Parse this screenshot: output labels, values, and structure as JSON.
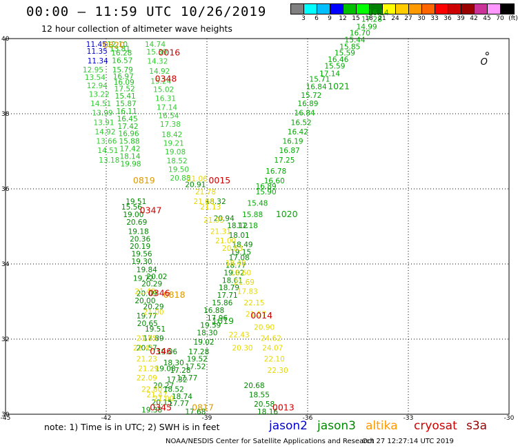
{
  "header": {
    "title": "00:00 – 11:59 UTC 10/26/2019",
    "subtitle": "12 hour collection of altimeter wave heights"
  },
  "colorbar": {
    "colors": [
      "#808080",
      "#00ffff",
      "#00bfff",
      "#0000ff",
      "#00c000",
      "#00ff00",
      "#008000",
      "#ffff00",
      "#ffcc00",
      "#ff9900",
      "#ff6600",
      "#ff0000",
      "#cc0000",
      "#990000",
      "#cc3399",
      "#ff99ff",
      "#000000"
    ],
    "labels": [
      "3",
      "6",
      "9",
      "12",
      "15",
      "18",
      "21",
      "24",
      "27",
      "30",
      "33",
      "36",
      "39",
      "42",
      "45",
      "70",
      "(ft)"
    ]
  },
  "map": {
    "lon_ticks": [
      "-45",
      "-42",
      "-39",
      "-36",
      "-33",
      "-30"
    ],
    "lat_ticks": [
      "30",
      "32",
      "34",
      "36",
      "38",
      "40"
    ],
    "land_label": "O",
    "tracks": [
      {
        "color": "#1fbf1f",
        "points": [
          [
            -41.98,
            39.78,
            "12.10"
          ],
          [
            -41.9,
            39.66,
            "13.81"
          ],
          [
            -41.85,
            39.55,
            "16.28"
          ],
          [
            -41.83,
            39.35,
            "16.57"
          ],
          [
            -41.82,
            39.1,
            "15.79"
          ],
          [
            -41.8,
            38.93,
            "16.97"
          ],
          [
            -41.78,
            38.77,
            "16.09"
          ],
          [
            -41.76,
            38.6,
            "17.52"
          ],
          [
            -41.74,
            38.4,
            "15.41"
          ],
          [
            -41.72,
            38.2,
            "15.87"
          ],
          [
            -41.7,
            38.0,
            "16.11"
          ],
          [
            -41.68,
            37.8,
            "16.45"
          ],
          [
            -41.66,
            37.6,
            "17.42"
          ],
          [
            -41.64,
            37.4,
            "16.96"
          ],
          [
            -41.62,
            37.2,
            "15.88"
          ],
          [
            -41.6,
            37.0,
            "17.42"
          ],
          [
            -41.6,
            36.8,
            "18.14"
          ],
          [
            -41.58,
            36.6,
            "19.98"
          ]
        ]
      },
      {
        "color": "#0000cc",
        "points": [
          [
            -42.6,
            39.78,
            "11.45"
          ],
          [
            -42.58,
            39.6,
            "11.35"
          ],
          [
            -42.56,
            39.34,
            "11.34"
          ]
        ]
      },
      {
        "color": "#33cc33",
        "points": [
          [
            -42.7,
            39.1,
            "12.95"
          ],
          [
            -42.64,
            38.9,
            "13.54"
          ],
          [
            -42.58,
            38.68,
            "12.94"
          ],
          [
            -42.52,
            38.45,
            "13.22"
          ],
          [
            -42.47,
            38.2,
            "14.51"
          ],
          [
            -42.42,
            37.95,
            "13.99"
          ],
          [
            -42.38,
            37.7,
            "13.91"
          ],
          [
            -42.34,
            37.45,
            "14.92"
          ],
          [
            -42.3,
            37.2,
            "13.66"
          ],
          [
            -42.26,
            36.95,
            "14.51"
          ],
          [
            -42.22,
            36.7,
            "13.18"
          ]
        ]
      },
      {
        "color": "#33cc33",
        "points": [
          [
            -40.85,
            39.78,
            "14.74"
          ],
          [
            -40.8,
            39.58,
            "15.39"
          ],
          [
            -40.78,
            39.33,
            "14.32"
          ],
          [
            -40.72,
            39.06,
            "14.92"
          ],
          [
            -40.68,
            38.8,
            "15.24"
          ],
          [
            -40.6,
            38.58,
            "15.02"
          ],
          [
            -40.54,
            38.34,
            "16.31"
          ],
          [
            -40.5,
            38.1,
            "17.14"
          ],
          [
            -40.45,
            37.88,
            "16.54"
          ],
          [
            -40.4,
            37.65,
            "17.38"
          ],
          [
            -40.35,
            37.38,
            "18.42"
          ],
          [
            -40.3,
            37.15,
            "19.21"
          ],
          [
            -40.25,
            36.92,
            "19.08"
          ],
          [
            -40.2,
            36.68,
            "18.52"
          ],
          [
            -40.15,
            36.45,
            "19.50"
          ],
          [
            -40.1,
            36.22,
            "20.88"
          ]
        ]
      },
      {
        "color": "#008800",
        "points": [
          [
            -39.65,
            36.05,
            "20.91"
          ],
          [
            -41.42,
            35.6,
            "19.51"
          ],
          [
            -41.55,
            35.45,
            "15.56"
          ],
          [
            -41.5,
            35.25,
            "19.00"
          ],
          [
            -41.4,
            35.05,
            "20.69"
          ],
          [
            -41.35,
            34.8,
            "19.18"
          ],
          [
            -41.3,
            34.6,
            "20.36"
          ],
          [
            -41.3,
            34.4,
            "20.19"
          ],
          [
            -41.25,
            34.2,
            "19.56"
          ],
          [
            -41.25,
            34.0,
            "19.30"
          ],
          [
            -41.1,
            33.78,
            "19.84"
          ],
          [
            -41.2,
            33.55,
            "19.72"
          ],
          [
            -40.95,
            33.4,
            "20.29"
          ],
          [
            -40.8,
            33.6,
            "20.02"
          ],
          [
            -41.1,
            33.15,
            "20.09"
          ],
          [
            -41.15,
            32.95,
            "20.00"
          ],
          [
            -40.9,
            32.8,
            "20.29"
          ],
          [
            -41.1,
            32.55,
            "19.77"
          ],
          [
            -41.08,
            32.35,
            "20.65"
          ],
          [
            -40.85,
            32.2,
            "19.51"
          ],
          [
            -40.9,
            31.95,
            "17.89"
          ],
          [
            -41.1,
            31.7,
            "20.57"
          ],
          [
            -40.5,
            31.6,
            "19.06"
          ],
          [
            -40.3,
            31.3,
            "18.30"
          ],
          [
            -40.1,
            31.1,
            "17.28"
          ],
          [
            -39.9,
            30.9,
            "17.77"
          ],
          [
            -40.2,
            30.85,
            "17.32"
          ],
          [
            -40.6,
            30.7,
            "20.27"
          ],
          [
            -40.3,
            30.6,
            "18.52"
          ],
          [
            -40.05,
            30.4,
            "18.74"
          ],
          [
            -40.65,
            30.25,
            "20.15"
          ],
          [
            -40.15,
            30.22,
            "17.77"
          ],
          [
            -40.95,
            30.05,
            "19.38"
          ],
          [
            -39.65,
            30.0,
            "17.68"
          ]
        ]
      },
      {
        "color": "#008800",
        "points": [
          [
            -39.05,
            35.6,
            "18.32"
          ],
          [
            -38.8,
            35.15,
            "20.94"
          ],
          [
            -38.4,
            34.95,
            "18.12"
          ],
          [
            -38.35,
            34.7,
            "18.01"
          ],
          [
            -38.25,
            34.45,
            "18.49"
          ],
          [
            -38.3,
            34.25,
            "19.15"
          ],
          [
            -38.35,
            34.1,
            "17.08"
          ],
          [
            -38.45,
            33.9,
            "18.77"
          ],
          [
            -38.5,
            33.7,
            "19.02"
          ],
          [
            -38.55,
            33.5,
            "18.61"
          ],
          [
            -38.65,
            33.3,
            "18.79"
          ],
          [
            -38.7,
            33.1,
            "17.71"
          ],
          [
            -38.85,
            32.9,
            "15.86"
          ],
          [
            -39.1,
            32.7,
            "16.88"
          ],
          [
            -39.0,
            32.5,
            "17.96"
          ],
          [
            -39.2,
            32.3,
            "19.59"
          ],
          [
            -39.3,
            32.1,
            "18.30"
          ],
          [
            -39.4,
            31.85,
            "19.02"
          ],
          [
            -39.55,
            31.6,
            "17.28"
          ],
          [
            -39.6,
            31.4,
            "19.52"
          ],
          [
            -39.65,
            31.2,
            "17.52"
          ],
          [
            -40.55,
            31.15,
            "19.08"
          ]
        ]
      },
      {
        "color": "#00aa00",
        "points": [
          [
            -38.1,
            34.95,
            "17.18"
          ],
          [
            -37.95,
            35.25,
            "15.88"
          ],
          [
            -37.8,
            35.55,
            "15.48"
          ],
          [
            -37.55,
            35.85,
            "15.90"
          ],
          [
            -37.3,
            36.15,
            "16.60"
          ],
          [
            -37.55,
            36.0,
            "16.89"
          ],
          [
            -37.25,
            36.4,
            "16.78"
          ],
          [
            -37.0,
            36.7,
            "17.25"
          ],
          [
            -36.85,
            36.95,
            "16.87"
          ],
          [
            -36.75,
            37.2,
            "16.19"
          ],
          [
            -36.6,
            37.45,
            "16.42"
          ],
          [
            -36.5,
            37.7,
            "16.52"
          ],
          [
            -36.4,
            37.95,
            "16.84"
          ],
          [
            -36.3,
            38.2,
            "16.89"
          ],
          [
            -36.2,
            38.42,
            "15.72"
          ],
          [
            -36.05,
            38.65,
            "16.84"
          ],
          [
            -35.95,
            38.85,
            "15.71"
          ],
          [
            -35.65,
            39.0,
            "17.14"
          ],
          [
            -35.5,
            39.2,
            "15.59"
          ],
          [
            -35.4,
            39.38,
            "16.46"
          ],
          [
            -35.2,
            39.55,
            "15.59"
          ],
          [
            -35.05,
            39.72,
            "15.85"
          ],
          [
            -34.9,
            39.9,
            "15.44"
          ],
          [
            -34.75,
            40.08,
            "16.70"
          ],
          [
            -34.55,
            40.25,
            "14.99"
          ],
          [
            -34.4,
            40.45,
            "17.28"
          ],
          [
            -34.2,
            40.62,
            "16.14"
          ]
        ]
      },
      {
        "color": "#e6d800",
        "points": [
          [
            -39.6,
            36.2,
            "21.06"
          ],
          [
            -39.35,
            35.85,
            "21.78"
          ],
          [
            -39.4,
            35.6,
            "21.68"
          ],
          [
            -39.2,
            35.45,
            "21.13"
          ],
          [
            -39.1,
            35.1,
            "21.95"
          ],
          [
            -38.9,
            34.8,
            "21.31"
          ],
          [
            -38.75,
            34.55,
            "21.00"
          ],
          [
            -38.55,
            34.35,
            "20.83"
          ],
          [
            -38.45,
            33.95,
            "18.48"
          ],
          [
            -38.3,
            33.7,
            "18.60"
          ],
          [
            -38.2,
            33.45,
            "21.69"
          ],
          [
            -38.1,
            33.2,
            "17.83"
          ],
          [
            -37.9,
            32.9,
            "22.15"
          ],
          [
            -37.85,
            32.6,
            "21.57"
          ],
          [
            -37.6,
            32.25,
            "20.90"
          ],
          [
            -37.4,
            31.95,
            "24.62"
          ],
          [
            -37.35,
            31.7,
            "24.07"
          ],
          [
            -37.3,
            31.4,
            "22.10"
          ],
          [
            -37.2,
            31.1,
            "22.30"
          ],
          [
            -41.1,
            31.95,
            "21.85"
          ],
          [
            -41.2,
            31.7,
            "22.41"
          ],
          [
            -41.1,
            31.4,
            "21.23"
          ],
          [
            -41.05,
            31.15,
            "21.29"
          ],
          [
            -41.1,
            30.9,
            "22.09"
          ],
          [
            -40.8,
            30.45,
            "21.47"
          ],
          [
            -40.6,
            30.35,
            "21.00"
          ],
          [
            -40.95,
            30.6,
            "22.80"
          ],
          [
            -38.35,
            32.05,
            "22.43"
          ],
          [
            -38.25,
            31.7,
            "20.30"
          ],
          [
            -41.15,
            33.2,
            "21.40"
          ],
          [
            -40.9,
            32.65,
            "21.00"
          ]
        ]
      },
      {
        "color": "#008800",
        "points": [
          [
            -37.9,
            30.7,
            "20.68"
          ],
          [
            -37.75,
            30.45,
            "18.55"
          ],
          [
            -37.6,
            30.2,
            "20.58"
          ],
          [
            -37.5,
            30.0,
            "18.16"
          ]
        ]
      },
      {
        "color": "#dd9900",
        "points": [
          [
            -42.1,
            39.75,
            "0820"
          ],
          [
            -41.2,
            36.15,
            "0819"
          ],
          [
            -40.3,
            33.1,
            "0818"
          ],
          [
            -39.45,
            30.1,
            "0817"
          ]
        ]
      },
      {
        "color": "#cc0000",
        "points": [
          [
            -40.45,
            39.55,
            "0016"
          ],
          [
            -40.55,
            38.85,
            "0348"
          ],
          [
            -38.95,
            36.15,
            "0015"
          ],
          [
            -41.0,
            35.35,
            "0347"
          ],
          [
            -40.75,
            33.15,
            "0346"
          ],
          [
            -40.7,
            31.6,
            "0346"
          ],
          [
            -37.7,
            32.55,
            "0014"
          ],
          [
            -37.05,
            30.1,
            "0013"
          ],
          [
            -40.7,
            30.1,
            "0345"
          ]
        ]
      },
      {
        "color": "#00aa00",
        "points": [
          [
            -35.4,
            38.65,
            "1021"
          ],
          [
            -36.95,
            35.25,
            "1020"
          ],
          [
            -38.85,
            32.4,
            "1019"
          ]
        ]
      }
    ]
  },
  "note": "note: 1) Time is in UTC; 2) SWH is in feet",
  "satellites": [
    {
      "name": "jason2",
      "color": "#0000cc"
    },
    {
      "name": "jason3",
      "color": "#008800"
    },
    {
      "name": "altika",
      "color": "#ff9900"
    },
    {
      "name": "cryosat",
      "color": "#cc0000"
    },
    {
      "name": "s3a",
      "color": "#990000"
    }
  ],
  "credit": "NOAA/NESDIS Center for Satellite Applications and Research",
  "timestamp": "Oct 27 12:27:14 UTC 2019"
}
